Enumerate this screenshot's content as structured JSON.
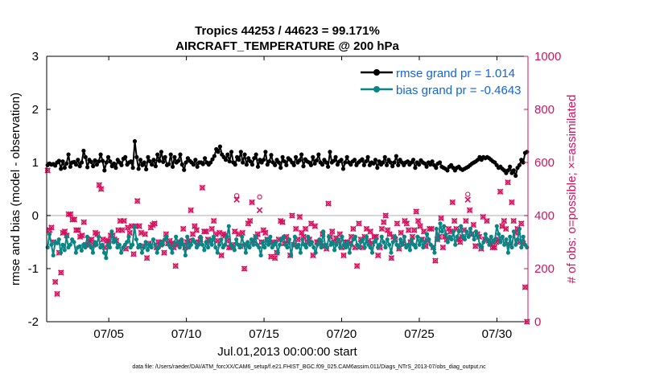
{
  "chart_data": {
    "type": "line",
    "title_line1": "Tropics 44253 / 44623 = 99.171%",
    "title_line2": "AIRCRAFT_TEMPERATURE @ 200 hPa",
    "xlabel": "Jul.01,2013 00:00:00 start",
    "ylabel_left": "rmse and bias (model - observation)",
    "ylabel_right": "# of obs: o=possible; ×=assimilated",
    "footer": "data file: /Users/raeder/DAI/ATM_forcXX/CAM6_setup/f.e21.FHIST_BGC.f09_025.CAM6assim.011/Diags_NTrS_2013-07/obs_diag_output.nc",
    "xlim": [
      1.0,
      32.0
    ],
    "ylim_left": [
      -2,
      3
    ],
    "ylim_right": [
      0,
      1000
    ],
    "x_ticks": [
      5,
      10,
      15,
      20,
      25,
      30
    ],
    "x_tick_labels": [
      "07/05",
      "07/10",
      "07/15",
      "07/20",
      "07/25",
      "07/30"
    ],
    "y_ticks_left": [
      -2,
      -1,
      0,
      1,
      2,
      3
    ],
    "y_tick_labels_left": [
      "-2",
      "-1",
      "0",
      "1",
      "2",
      "3"
    ],
    "y_ticks_right": [
      0,
      200,
      400,
      600,
      800,
      1000
    ],
    "y_tick_labels_right": [
      "0",
      "200",
      "400",
      "600",
      "800",
      "1000"
    ],
    "zero_line": 0,
    "legend": [
      "rmse grand pr = 1.014",
      "bias grand pr = -0.4643"
    ],
    "legend_position": "top-right",
    "colors": {
      "rmse": "#000000",
      "bias": "#0a8585",
      "obs": "#d6105c",
      "legend_text": "#1464dc",
      "zero_line": "#c8c8c8",
      "axes": "#000000"
    },
    "rmse": [
      0.95,
      0.98,
      0.96,
      0.97,
      0.94,
      1.0,
      1.03,
      0.88,
      1.02,
      0.9,
      0.98,
      1.15,
      0.92,
      1.0,
      1.01,
      0.96,
      1.05,
      0.93,
      1.0,
      1.22,
      1.1,
      0.91,
      1.05,
      1.01,
      0.93,
      1.04,
      0.96,
      1.02,
      1.15,
      1.03,
      0.85,
      1.0,
      1.1,
      1.02,
      0.93,
      0.98,
      0.9,
      1.05,
      1.0,
      0.95,
      1.07,
      1.1,
      0.96,
      1.0,
      1.02,
      0.9,
      1.4,
      1.1,
      0.88,
      1.05,
      0.95,
      1.0,
      0.87,
      1.1,
      1.02,
      0.96,
      1.05,
      0.93,
      1.15,
      1.03,
      1.2,
      1.01,
      1.1,
      0.95,
      0.97,
      1.15,
      0.92,
      1.1,
      1.0,
      1.03,
      1.15,
      0.96,
      0.86,
      1.0,
      1.08,
      1.03,
      1.0,
      0.96,
      1.05,
      0.92,
      1.0,
      1.0,
      0.97,
      1.08,
      1.0,
      0.96,
      1.0,
      1.06,
      1.12,
      1.25,
      1.2,
      1.3,
      1.15,
      1.1,
      1.05,
      1.15,
      1.02,
      1.2,
      1.0,
      0.96,
      1.1,
      1.05,
      1.2,
      1.0,
      1.15,
      0.96,
      1.08,
      1.02,
      0.96,
      1.08,
      1.15,
      0.92,
      1.05,
      1.0,
      1.05,
      1.2,
      0.96,
      1.02,
      1.14,
      1.0,
      0.95,
      1.05,
      1.0,
      0.9,
      1.1,
      1.02,
      0.95,
      1.08,
      1.05,
      1.0,
      0.95,
      1.1,
      1.0,
      1.04,
      1.15,
      0.93,
      1.06,
      1.02,
      1.0,
      0.95,
      1.1,
      0.98,
      1.04,
      1.15,
      1.0,
      0.96,
      1.05,
      1.0,
      0.92,
      1.2,
      1.0,
      1.03,
      1.1,
      0.96,
      1.02,
      1.05,
      0.88,
      1.0,
      1.1,
      1.0,
      0.96,
      1.02,
      1.05,
      0.95,
      1.0,
      1.03,
      1.06,
      0.95,
      1.02,
      1.1,
      0.95,
      1.0,
      0.98,
      1.05,
      0.9,
      1.02,
      0.96,
      1.0,
      1.1,
      0.95,
      1.05,
      1.0,
      0.93,
      1.0,
      1.12,
      0.95,
      1.05,
      1.0,
      0.95,
      1.0,
      1.02,
      0.96,
      1.0,
      1.05,
      0.9,
      1.0,
      0.96,
      1.04,
      1.0,
      0.98,
      0.92,
      1.0,
      0.96,
      1.02,
      0.95,
      0.9,
      0.98,
      1.0,
      0.92,
      0.9,
      0.88,
      0.85,
      0.92,
      0.95,
      0.9,
      0.85,
      0.9,
      0.92,
      0.88,
      0.86,
      0.88,
      0.9,
      0.92,
      0.95,
      0.98,
      1.0,
      1.02,
      1.05,
      1.1,
      1.05,
      1.1,
      1.08,
      1.1,
      1.08,
      1.05,
      1.02,
      1.0,
      0.95,
      0.9,
      0.92,
      0.88,
      0.85,
      0.8,
      0.85,
      0.92,
      0.8,
      0.85,
      0.75,
      0.9,
      0.95,
      1.05,
      1.0,
      1.18,
      1.2
    ],
    "bias": [
      -0.6,
      -0.35,
      -0.55,
      -0.75,
      -0.5,
      -0.52,
      -0.45,
      -0.7,
      -0.55,
      -0.65,
      -0.4,
      -0.6,
      -0.55,
      -0.45,
      -0.5,
      -0.7,
      -0.6,
      -0.58,
      -0.66,
      -0.55,
      -0.6,
      -0.4,
      -0.55,
      -0.6,
      -0.7,
      -0.5,
      -0.55,
      -0.4,
      -0.6,
      -0.55,
      -0.7,
      -0.8,
      -0.55,
      -0.6,
      -0.3,
      -0.5,
      -0.45,
      -0.6,
      -0.55,
      -0.7,
      -0.6,
      -0.55,
      -0.5,
      -0.4,
      -0.6,
      -0.55,
      -0.2,
      -0.45,
      -0.6,
      -0.55,
      -0.7,
      -0.6,
      -0.5,
      -0.65,
      -0.55,
      -0.6,
      -0.45,
      -0.55,
      -0.7,
      -0.6,
      -0.5,
      -0.55,
      -0.45,
      -0.4,
      -0.55,
      -0.6,
      -0.7,
      -0.55,
      -0.4,
      -0.5,
      -0.6,
      -0.45,
      -0.55,
      -0.75,
      -0.4,
      -0.6,
      -0.55,
      -0.45,
      -0.5,
      -0.6,
      -0.55,
      -0.4,
      -0.55,
      -0.65,
      -0.5,
      -0.6,
      -0.45,
      -0.55,
      -0.4,
      -0.6,
      -0.7,
      -0.55,
      -0.45,
      -0.6,
      -0.55,
      -0.4,
      -0.2,
      -0.55,
      -0.6,
      -0.65,
      -0.45,
      -0.55,
      -0.6,
      -0.4,
      -0.55,
      -0.7,
      -0.5,
      -0.6,
      -0.45,
      -0.55,
      -0.4,
      -0.55,
      -0.6,
      -0.75,
      -0.5,
      -0.6,
      -0.45,
      -0.55,
      -0.4,
      -0.6,
      -0.55,
      -0.5,
      -0.7,
      -0.55,
      -0.45,
      -0.4,
      -0.55,
      -0.6,
      -0.45,
      -0.75,
      -0.55,
      -0.4,
      -0.6,
      -0.55,
      -0.7,
      -0.45,
      -0.55,
      -0.6,
      -0.4,
      -0.55,
      -0.5,
      -0.6,
      -0.7,
      -0.55,
      -0.45,
      -0.6,
      -0.3,
      -0.55,
      -0.6,
      -0.4,
      -0.55,
      -0.5,
      -0.65,
      -0.55,
      -0.45,
      -0.6,
      -0.4,
      -0.55,
      -0.6,
      -0.5,
      -0.7,
      -0.55,
      -0.45,
      -0.4,
      -0.55,
      -0.6,
      -0.5,
      -0.45,
      -0.6,
      -0.4,
      -0.55,
      -0.6,
      -0.7,
      -0.5,
      -0.45,
      -0.6,
      -0.55,
      -0.4,
      -0.5,
      -0.6,
      -0.45,
      -0.55,
      -0.7,
      -0.5,
      -0.4,
      -0.55,
      -0.6,
      -0.45,
      -0.55,
      -0.4,
      -0.6,
      -0.55,
      -0.65,
      -0.45,
      -0.55,
      -0.6,
      -0.4,
      -0.55,
      -0.45,
      -0.6,
      -0.5,
      -0.35,
      -0.45,
      -0.55,
      -0.6,
      -0.7,
      -0.25,
      -0.45,
      -0.15,
      -0.3,
      -0.2,
      -0.35,
      -0.5,
      -0.4,
      -0.45,
      -0.3,
      -0.55,
      -0.4,
      -0.3,
      -0.2,
      -0.4,
      -0.45,
      -0.3,
      -0.4,
      -0.25,
      -0.35,
      -0.45,
      -0.3,
      -0.4,
      -0.55,
      -0.6,
      -0.5,
      -0.35,
      -0.45,
      -0.55,
      -0.4,
      -0.5,
      -0.45,
      -0.2,
      -0.35,
      -0.5,
      -0.4,
      -0.55,
      -0.45,
      -0.7,
      -0.4,
      -0.6,
      -0.3,
      -0.55,
      -0.45,
      -0.25,
      -0.6,
      -0.4,
      -0.55,
      -0.6
    ],
    "obs_assimilated": [
      570,
      345,
      355,
      300,
      150,
      105,
      260,
      185,
      335,
      340,
      325,
      405,
      405,
      385,
      385,
      345,
      345,
      320,
      325,
      375,
      290,
      290,
      305,
      310,
      290,
      335,
      330,
      515,
      500,
      310,
      280,
      305,
      305,
      325,
      325,
      310,
      305,
      345,
      380,
      345,
      380,
      275,
      355,
      335,
      360,
      255,
      360,
      455,
      360,
      335,
      285,
      330,
      240,
      295,
      355,
      365,
      370,
      280,
      300,
      290,
      300,
      260,
      330,
      295,
      305,
      295,
      280,
      210,
      290,
      295,
      300,
      350,
      280,
      300,
      305,
      420,
      330,
      360,
      345,
      300,
      310,
      505,
      340,
      340,
      310,
      305,
      350,
      380,
      330,
      305,
      335,
      250,
      330,
      325,
      305,
      280,
      280,
      290,
      340,
      460,
      330,
      285,
      335,
      200,
      290,
      370,
      380,
      450,
      305,
      320,
      330,
      420,
      300,
      345,
      335,
      310,
      300,
      245,
      300,
      240,
      260,
      310,
      380,
      375,
      295,
      320,
      305,
      250,
      400,
      290,
      350,
      310,
      395,
      335,
      320,
      350,
      300,
      310,
      370,
      250,
      360,
      300,
      300,
      295,
      330,
      285,
      275,
      445,
      320,
      340,
      300,
      315,
      305,
      330,
      280,
      250,
      300,
      300,
      295,
      320,
      350,
      280,
      210,
      370,
      310,
      280,
      320,
      350,
      305,
      340,
      295,
      320,
      320,
      250,
      280,
      350,
      375,
      400,
      345,
      330,
      240,
      320,
      310,
      370,
      275,
      335,
      295,
      380,
      370,
      345,
      300,
      320,
      345,
      415,
      380,
      360,
      310,
      340,
      285,
      305,
      350,
      350,
      280,
      230,
      310,
      320,
      390,
      280,
      320,
      310,
      350,
      340,
      450,
      380,
      350,
      310,
      300,
      320,
      345,
      380,
      460,
      420,
      330,
      365,
      285,
      330,
      320,
      275,
      395,
      310,
      380,
      305,
      295,
      280,
      280,
      300,
      310,
      490,
      360,
      380,
      350,
      525,
      290,
      450,
      380,
      335,
      350,
      300,
      370,
      295,
      130,
      0
    ],
    "obs_possible": [
      570,
      345,
      355,
      300,
      150,
      105,
      260,
      185,
      335,
      340,
      325,
      405,
      405,
      385,
      385,
      345,
      345,
      320,
      325,
      375,
      290,
      290,
      305,
      310,
      290,
      335,
      330,
      515,
      500,
      310,
      280,
      305,
      305,
      325,
      325,
      310,
      305,
      345,
      380,
      345,
      380,
      275,
      355,
      335,
      360,
      255,
      360,
      455,
      360,
      335,
      285,
      330,
      240,
      295,
      355,
      365,
      370,
      280,
      300,
      290,
      300,
      260,
      330,
      295,
      305,
      295,
      280,
      210,
      290,
      295,
      300,
      350,
      280,
      300,
      305,
      420,
      330,
      360,
      345,
      300,
      310,
      505,
      340,
      340,
      310,
      305,
      350,
      380,
      330,
      305,
      335,
      250,
      330,
      325,
      305,
      280,
      280,
      290,
      340,
      475,
      330,
      285,
      335,
      200,
      290,
      370,
      380,
      450,
      305,
      320,
      330,
      470,
      300,
      345,
      335,
      310,
      300,
      245,
      300,
      240,
      260,
      310,
      380,
      375,
      295,
      320,
      305,
      250,
      400,
      290,
      350,
      310,
      395,
      335,
      320,
      350,
      300,
      310,
      370,
      250,
      360,
      300,
      300,
      295,
      330,
      285,
      275,
      445,
      320,
      340,
      300,
      315,
      305,
      330,
      280,
      250,
      300,
      300,
      295,
      320,
      350,
      280,
      210,
      370,
      310,
      280,
      320,
      350,
      305,
      340,
      295,
      320,
      320,
      250,
      280,
      350,
      375,
      400,
      345,
      330,
      240,
      320,
      310,
      370,
      275,
      335,
      295,
      380,
      370,
      345,
      300,
      320,
      345,
      415,
      380,
      360,
      310,
      340,
      285,
      305,
      350,
      350,
      280,
      230,
      310,
      320,
      390,
      280,
      320,
      310,
      350,
      340,
      450,
      380,
      350,
      310,
      300,
      320,
      345,
      380,
      480,
      420,
      330,
      365,
      285,
      330,
      320,
      275,
      395,
      310,
      380,
      305,
      295,
      280,
      280,
      300,
      310,
      490,
      360,
      380,
      350,
      525,
      290,
      450,
      380,
      335,
      350,
      300,
      370,
      295,
      130,
      0
    ]
  }
}
